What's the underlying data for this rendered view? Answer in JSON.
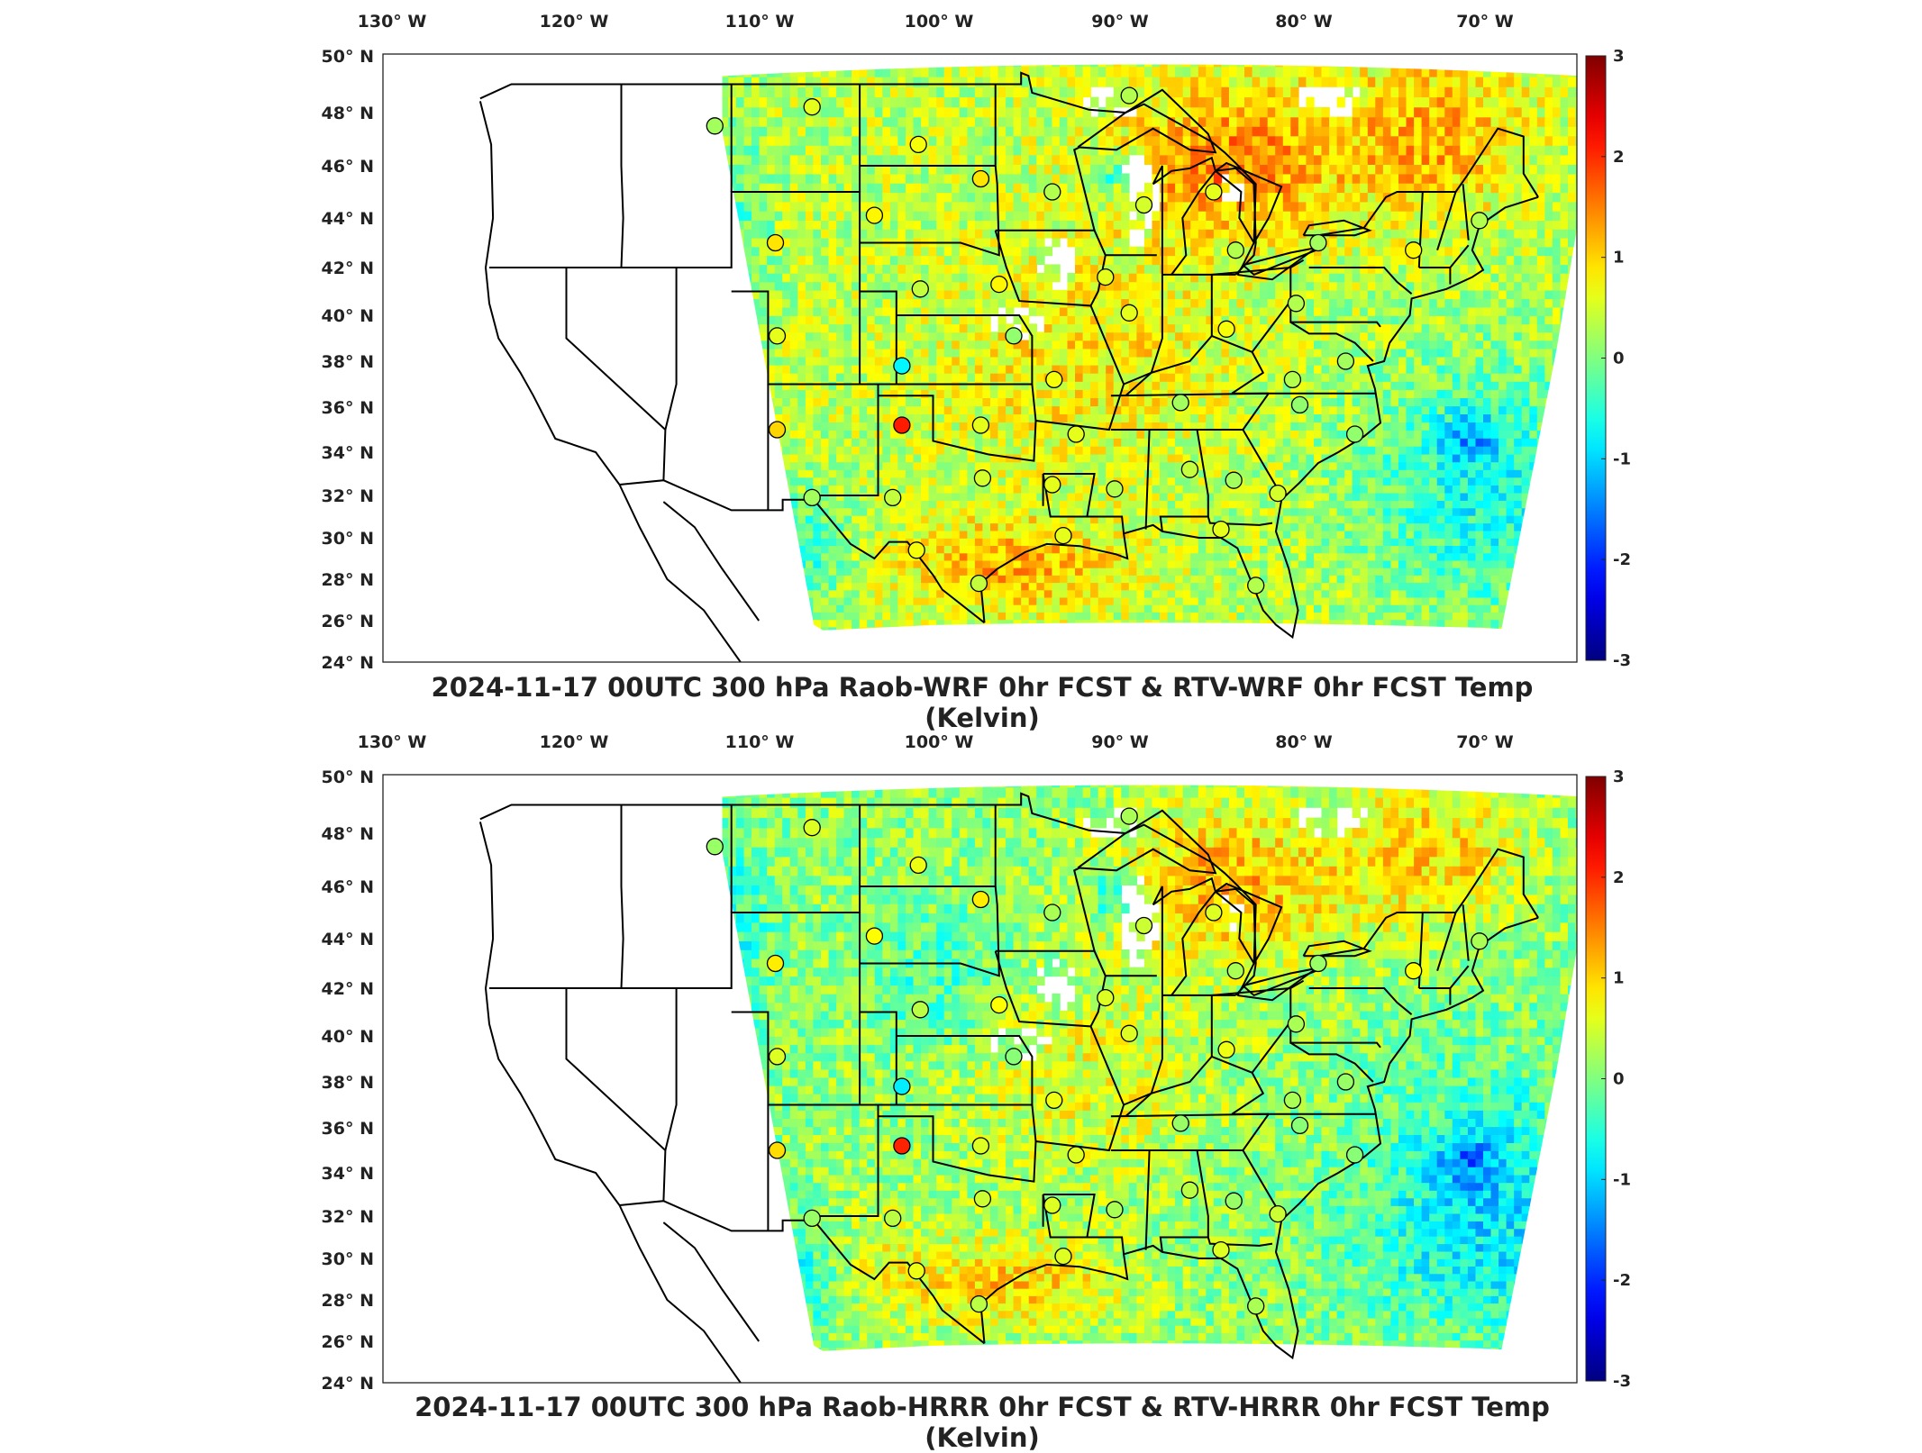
{
  "panels": [
    {
      "title": "2024-11-17 00UTC 300 hPa Raob-WRF 0hr FCST & RTV-WRF 0hr FCST Temp (Kelvin)",
      "variant": "wrf"
    },
    {
      "title": "2024-11-17 00UTC 300 hPa Raob-HRRR 0hr FCST & RTV-HRRR 0hr FCST Temp (Kelvin)",
      "variant": "hrrr"
    }
  ],
  "lon_ticks": [
    "130 W",
    "120 W",
    "110 W",
    "100 W",
    "90 W",
    "80 W",
    "70 W"
  ],
  "lat_ticks": [
    "50 N",
    "48 N",
    "46 N",
    "44 N",
    "42 N",
    "40 N",
    "38 N",
    "36 N",
    "34 N",
    "32 N",
    "30 N",
    "28 N",
    "26 N",
    "24 N"
  ],
  "colorbar": {
    "ticks": [
      "3",
      "2",
      "1",
      "0",
      "-1",
      "-2",
      "-3"
    ],
    "range": [
      -3,
      3
    ],
    "colormap": "jet"
  },
  "colors": {
    "jet_low": "#00007f",
    "jet_mid_low": "#00bfff",
    "jet_mid": "#7fff7f",
    "jet_mid_high": "#ffd700",
    "jet_high": "#7f0000",
    "border": "#000000"
  },
  "raob_sites": [
    {
      "lon": -111.9,
      "lat": 47.5,
      "v": 0.2
    },
    {
      "lon": -106.6,
      "lat": 48.2,
      "v": 0.6
    },
    {
      "lon": -100.8,
      "lat": 46.8,
      "v": 0.7
    },
    {
      "lon": -97.4,
      "lat": 45.5,
      "v": 0.9
    },
    {
      "lon": -93.5,
      "lat": 45.0,
      "v": 0.3
    },
    {
      "lon": -88.5,
      "lat": 44.5,
      "v": 0.5
    },
    {
      "lon": -84.7,
      "lat": 45.0,
      "v": 0.6
    },
    {
      "lon": -89.3,
      "lat": 48.6,
      "v": 0.3
    },
    {
      "lon": -103.2,
      "lat": 44.1,
      "v": 0.8
    },
    {
      "lon": -108.6,
      "lat": 43.0,
      "v": 0.9
    },
    {
      "lon": -100.7,
      "lat": 41.1,
      "v": 0.4
    },
    {
      "lon": -96.4,
      "lat": 41.3,
      "v": 0.8
    },
    {
      "lon": -90.6,
      "lat": 41.6,
      "v": 0.6
    },
    {
      "lon": -83.5,
      "lat": 42.7,
      "v": 0.3
    },
    {
      "lon": -79.0,
      "lat": 43.0,
      "v": 0.2
    },
    {
      "lon": -73.8,
      "lat": 42.7,
      "v": 0.8
    },
    {
      "lon": -70.2,
      "lat": 43.9,
      "v": 0.3
    },
    {
      "lon": -108.5,
      "lat": 39.1,
      "v": 0.6
    },
    {
      "lon": -101.7,
      "lat": 37.8,
      "v": -0.8
    },
    {
      "lon": -95.6,
      "lat": 39.1,
      "v": 0.1
    },
    {
      "lon": -89.3,
      "lat": 40.1,
      "v": 0.6
    },
    {
      "lon": -84.0,
      "lat": 39.4,
      "v": 0.7
    },
    {
      "lon": -80.2,
      "lat": 40.5,
      "v": 0.3
    },
    {
      "lon": -77.5,
      "lat": 38.0,
      "v": 0.2
    },
    {
      "lon": -80.4,
      "lat": 37.2,
      "v": 0.3
    },
    {
      "lon": -86.5,
      "lat": 36.2,
      "v": 0.2
    },
    {
      "lon": -93.4,
      "lat": 37.2,
      "v": 0.7
    },
    {
      "lon": -108.5,
      "lat": 35.0,
      "v": 1.0
    },
    {
      "lon": -101.7,
      "lat": 35.2,
      "v": 2.1
    },
    {
      "lon": -97.4,
      "lat": 35.2,
      "v": 0.6
    },
    {
      "lon": -92.2,
      "lat": 34.8,
      "v": 0.6
    },
    {
      "lon": -77.0,
      "lat": 34.8,
      "v": 0.1
    },
    {
      "lon": -80.0,
      "lat": 36.1,
      "v": 0.1
    },
    {
      "lon": -106.6,
      "lat": 31.9,
      "v": 0.2
    },
    {
      "lon": -102.2,
      "lat": 31.9,
      "v": 0.4
    },
    {
      "lon": -97.3,
      "lat": 32.8,
      "v": 0.5
    },
    {
      "lon": -93.5,
      "lat": 32.5,
      "v": 0.6
    },
    {
      "lon": -90.1,
      "lat": 32.3,
      "v": 0.3
    },
    {
      "lon": -86.0,
      "lat": 33.2,
      "v": 0.4
    },
    {
      "lon": -83.6,
      "lat": 32.7,
      "v": 0.2
    },
    {
      "lon": -81.2,
      "lat": 32.1,
      "v": 0.5
    },
    {
      "lon": -100.9,
      "lat": 29.4,
      "v": 0.7
    },
    {
      "lon": -97.5,
      "lat": 27.8,
      "v": 0.4
    },
    {
      "lon": -92.9,
      "lat": 30.1,
      "v": 0.6
    },
    {
      "lon": -84.3,
      "lat": 30.4,
      "v": 0.6
    },
    {
      "lon": -82.4,
      "lat": 27.7,
      "v": 0.3
    }
  ]
}
